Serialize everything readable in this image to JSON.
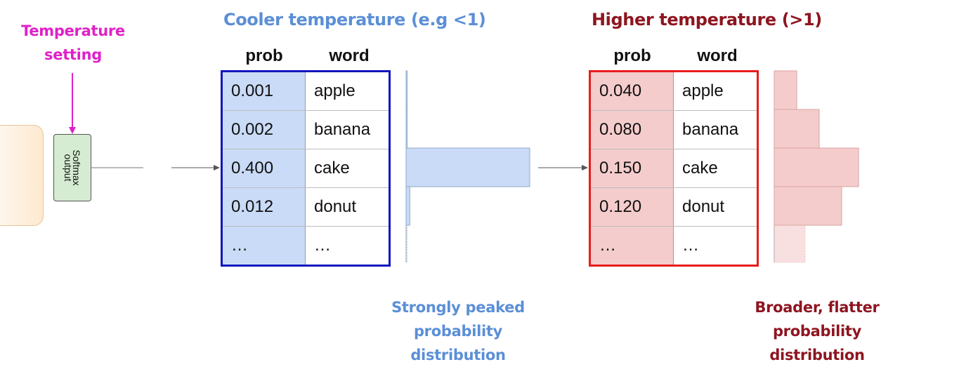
{
  "temperature_setting": {
    "label_line1": "Temperature",
    "label_line2": "setting",
    "color": "#e020c8"
  },
  "softmax": {
    "line1": "Softmax",
    "line2": "output"
  },
  "cool": {
    "title": "Cooler temperature (e.g <1)",
    "color": "#5b8fd6",
    "table_border_color": "#1414c0",
    "header_prob": "prob",
    "header_word": "word",
    "rows": [
      {
        "prob": "0.001",
        "word": "apple"
      },
      {
        "prob": "0.002",
        "word": "banana"
      },
      {
        "prob": "0.400",
        "word": "cake"
      },
      {
        "prob": "0.012",
        "word": "donut"
      },
      {
        "prob": "…",
        "word": "…"
      }
    ],
    "caption_line1": "Strongly peaked",
    "caption_line2": "probability",
    "caption_line3": "distribution"
  },
  "hot": {
    "title": "Higher temperature (>1)",
    "color": "#8e1520",
    "table_border_color": "#e81c1c",
    "header_prob": "prob",
    "header_word": "word",
    "rows": [
      {
        "prob": "0.040",
        "word": "apple"
      },
      {
        "prob": "0.080",
        "word": "banana"
      },
      {
        "prob": "0.150",
        "word": "cake"
      },
      {
        "prob": "0.120",
        "word": "donut"
      },
      {
        "prob": "…",
        "word": "…"
      }
    ],
    "caption_line1": "Broader, flatter",
    "caption_line2": "probability",
    "caption_line3": "distribution"
  },
  "chart_data": [
    {
      "type": "bar",
      "orientation": "horizontal",
      "categories": [
        "apple",
        "banana",
        "cake",
        "donut"
      ],
      "values": [
        0.001,
        0.002,
        0.4,
        0.012
      ],
      "bar_color": "#c9dbf6"
    },
    {
      "type": "bar",
      "orientation": "horizontal",
      "categories": [
        "apple",
        "banana",
        "cake",
        "donut"
      ],
      "values": [
        0.04,
        0.08,
        0.15,
        0.12
      ],
      "bar_color": "#f5cccc"
    }
  ]
}
